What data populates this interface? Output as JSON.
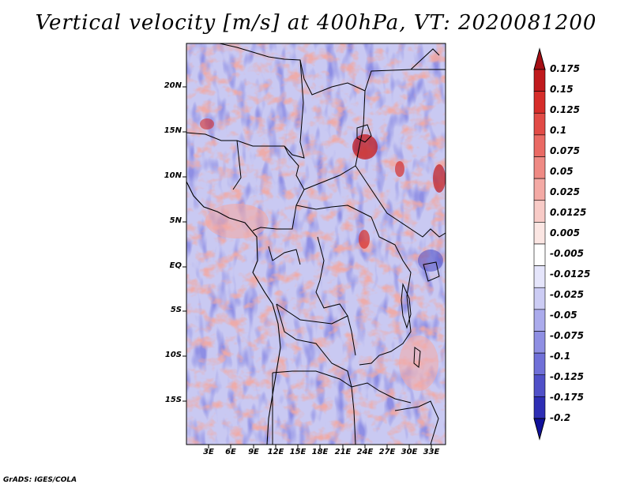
{
  "title": "Vertical velocity [m/s] at 400hPa, VT: 2020081200",
  "credit": "GrADS: IGES/COLA",
  "latitude_labels": [
    "20N",
    "15N",
    "10N",
    "5N",
    "EQ",
    "5S",
    "10S",
    "15S"
  ],
  "longitude_labels": [
    "3E",
    "6E",
    "9E",
    "12E",
    "15E",
    "18E",
    "21E",
    "24E",
    "27E",
    "30E",
    "33E"
  ],
  "colorbar": {
    "levels": [
      "0.175",
      "0.15",
      "0.125",
      "0.1",
      "0.075",
      "0.05",
      "0.025",
      "0.0125",
      "0.005",
      "-0.005",
      "-0.0125",
      "-0.025",
      "-0.05",
      "-0.075",
      "-0.1",
      "-0.125",
      "-0.175",
      "-0.2"
    ],
    "colors": [
      "#a50f15",
      "#c01a1d",
      "#d62d2a",
      "#e24b46",
      "#ea6a64",
      "#ef8a84",
      "#f4aaa5",
      "#f8cbc7",
      "#fbe6e3",
      "#ffffff",
      "#e5e5fb",
      "#ccccf4",
      "#ababec",
      "#8f8fe3",
      "#7070d8",
      "#5050c8",
      "#2e2eb4",
      "#10109a"
    ],
    "extend": "both"
  }
}
